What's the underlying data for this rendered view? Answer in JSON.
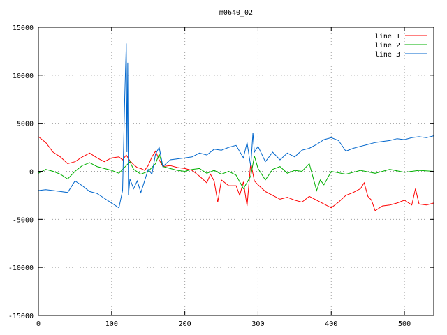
{
  "chart_data": {
    "type": "line",
    "title": "m0640_02",
    "xlabel": "",
    "ylabel": "",
    "xlim": [
      0,
      540
    ],
    "ylim": [
      -15000,
      15000
    ],
    "xticks": [
      0,
      100,
      200,
      300,
      400,
      500
    ],
    "yticks": [
      -15000,
      -10000,
      -5000,
      0,
      5000,
      10000,
      15000
    ],
    "grid": true,
    "legend_position": "top-right",
    "series": [
      {
        "name": "line 1",
        "color": "#ff0000",
        "x": [
          0,
          10,
          20,
          30,
          40,
          50,
          60,
          70,
          80,
          90,
          100,
          110,
          115,
          120,
          125,
          130,
          135,
          140,
          145,
          150,
          155,
          160,
          165,
          170,
          180,
          190,
          200,
          210,
          220,
          230,
          235,
          240,
          245,
          250,
          260,
          270,
          275,
          280,
          285,
          290,
          295,
          300,
          310,
          320,
          330,
          340,
          350,
          360,
          370,
          380,
          390,
          400,
          410,
          420,
          430,
          440,
          445,
          450,
          455,
          460,
          470,
          480,
          490,
          500,
          510,
          515,
          520,
          530,
          540
        ],
        "y": [
          3600,
          3000,
          2000,
          1500,
          800,
          1000,
          1500,
          1900,
          1400,
          1000,
          1400,
          1500,
          1200,
          1700,
          1100,
          700,
          400,
          300,
          100,
          600,
          1500,
          2100,
          1200,
          500,
          600,
          400,
          300,
          100,
          -500,
          -1200,
          -300,
          -1000,
          -3200,
          -900,
          -1500,
          -1500,
          -2500,
          -1100,
          -3600,
          900,
          -1000,
          -1400,
          -2100,
          -2500,
          -2900,
          -2700,
          -3000,
          -3200,
          -2600,
          -3000,
          -3400,
          -3800,
          -3200,
          -2500,
          -2200,
          -1800,
          -1200,
          -2600,
          -3000,
          -4100,
          -3600,
          -3500,
          -3300,
          -3000,
          -3500,
          -1800,
          -3400,
          -3500,
          -3300
        ]
      },
      {
        "name": "line 2",
        "color": "#00b000",
        "x": [
          0,
          10,
          20,
          30,
          40,
          50,
          60,
          70,
          80,
          90,
          100,
          110,
          120,
          125,
          130,
          140,
          150,
          160,
          165,
          170,
          180,
          190,
          200,
          210,
          220,
          230,
          240,
          250,
          260,
          270,
          280,
          290,
          295,
          300,
          310,
          320,
          330,
          340,
          350,
          360,
          370,
          375,
          380,
          385,
          390,
          400,
          420,
          440,
          460,
          480,
          500,
          520,
          540
        ],
        "y": [
          -200,
          200,
          0,
          -300,
          -800,
          0,
          600,
          900,
          500,
          300,
          100,
          -200,
          600,
          1000,
          200,
          -300,
          0,
          800,
          1800,
          500,
          300,
          100,
          0,
          200,
          300,
          -200,
          100,
          -300,
          0,
          -400,
          -1800,
          -500,
          1600,
          300,
          -900,
          200,
          500,
          -200,
          100,
          0,
          800,
          -600,
          -2000,
          -900,
          -1400,
          0,
          -300,
          100,
          -200,
          200,
          -100,
          100,
          0
        ]
      },
      {
        "name": "line 3",
        "color": "#0066cc",
        "x": [
          0,
          10,
          20,
          30,
          40,
          50,
          60,
          70,
          80,
          90,
          100,
          110,
          115,
          118,
          120,
          121,
          122,
          123,
          125,
          130,
          135,
          140,
          145,
          150,
          155,
          160,
          165,
          170,
          180,
          190,
          200,
          210,
          220,
          230,
          240,
          250,
          260,
          270,
          280,
          285,
          290,
          293,
          295,
          300,
          310,
          320,
          330,
          340,
          350,
          360,
          370,
          380,
          390,
          400,
          410,
          420,
          430,
          440,
          450,
          460,
          470,
          480,
          490,
          500,
          510,
          520,
          530,
          540
        ],
        "y": [
          -2000,
          -1900,
          -2000,
          -2100,
          -2200,
          -1000,
          -1500,
          -2100,
          -2300,
          -2800,
          -3300,
          -3800,
          -2000,
          8000,
          13300,
          2000,
          11300,
          -2500,
          -800,
          -1800,
          -1000,
          -2200,
          -1000,
          200,
          -300,
          1800,
          2500,
          500,
          1200,
          1300,
          1400,
          1500,
          1900,
          1700,
          2300,
          2200,
          2500,
          2700,
          1400,
          3000,
          500,
          4000,
          2000,
          2600,
          1000,
          2000,
          1200,
          1900,
          1500,
          2200,
          2400,
          2800,
          3300,
          3500,
          3200,
          2100,
          2400,
          2600,
          2800,
          3000,
          3100,
          3200,
          3400,
          3300,
          3500,
          3600,
          3500,
          3700
        ]
      }
    ]
  }
}
